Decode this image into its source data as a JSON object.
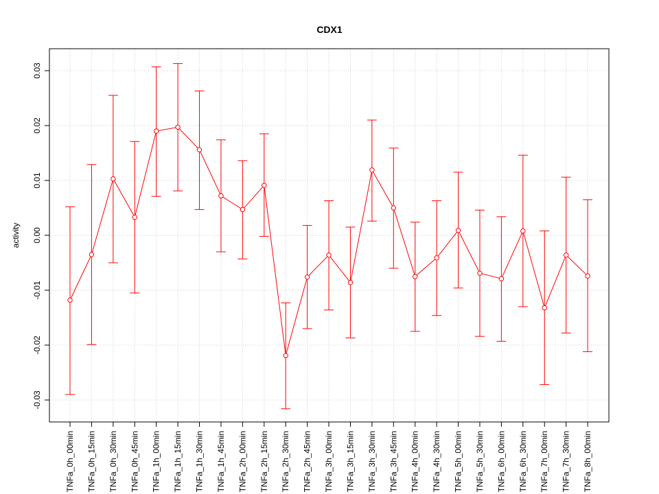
{
  "chart_data": {
    "type": "line",
    "title": "CDX1",
    "xlabel": "",
    "ylabel": "activity",
    "ylim": [
      -0.034,
      0.034
    ],
    "yticks": [
      -0.03,
      -0.02,
      -0.01,
      0.0,
      0.01,
      0.02,
      0.03
    ],
    "ytick_labels": [
      "-0.03",
      "-0.02",
      "-0.01",
      "0.00",
      "0.01",
      "0.02",
      "0.03"
    ],
    "grid": true,
    "color": "#ff0000",
    "categories": [
      "TNFa_0h_00min",
      "TNFa_0h_15min",
      "TNFa_0h_30min",
      "TNFa_0h_45min",
      "TNFa_1h_00min",
      "TNFa_1h_15min",
      "TNFa_1h_30min",
      "TNFa_1h_45min",
      "TNFa_2h_00min",
      "TNFa_2h_15min",
      "TNFa_2h_30min",
      "TNFa_2h_45min",
      "TNFa_3h_00min",
      "TNFa_3h_15min",
      "TNFa_3h_30min",
      "TNFa_3h_45min",
      "TNFa_4h_00min",
      "TNFa_4h_30min",
      "TNFa_5h_00min",
      "TNFa_5h_30min",
      "TNFa_6h_00min",
      "TNFa_6h_30min",
      "TNFa_7h_00min",
      "TNFa_7h_30min",
      "TNFa_8h_00min"
    ],
    "values": [
      -0.0118,
      -0.0035,
      0.0103,
      0.0033,
      0.019,
      0.0197,
      0.0156,
      0.0072,
      0.0047,
      0.0091,
      -0.0219,
      -0.0076,
      -0.0036,
      -0.0086,
      0.0119,
      0.005,
      -0.0075,
      -0.0041,
      0.0009,
      -0.0069,
      -0.0079,
      0.0008,
      -0.0132,
      -0.0036,
      -0.0074
    ],
    "upper": [
      0.0052,
      0.0129,
      0.0255,
      0.0171,
      0.0307,
      0.0313,
      0.0263,
      0.0174,
      0.0136,
      0.0185,
      -0.0123,
      0.0018,
      0.0063,
      0.0015,
      0.021,
      0.0159,
      0.0024,
      0.0063,
      0.0115,
      0.0046,
      0.0034,
      0.0146,
      0.0008,
      0.0106,
      0.0065
    ],
    "lower": [
      -0.029,
      -0.0199,
      -0.005,
      -0.0105,
      0.0071,
      0.0081,
      0.0047,
      -0.003,
      -0.0043,
      -0.0002,
      -0.0316,
      -0.017,
      -0.0136,
      -0.0187,
      0.0026,
      -0.006,
      -0.0175,
      -0.0146,
      -0.0096,
      -0.0184,
      -0.0193,
      -0.013,
      -0.0272,
      -0.0178,
      -0.0212
    ]
  }
}
